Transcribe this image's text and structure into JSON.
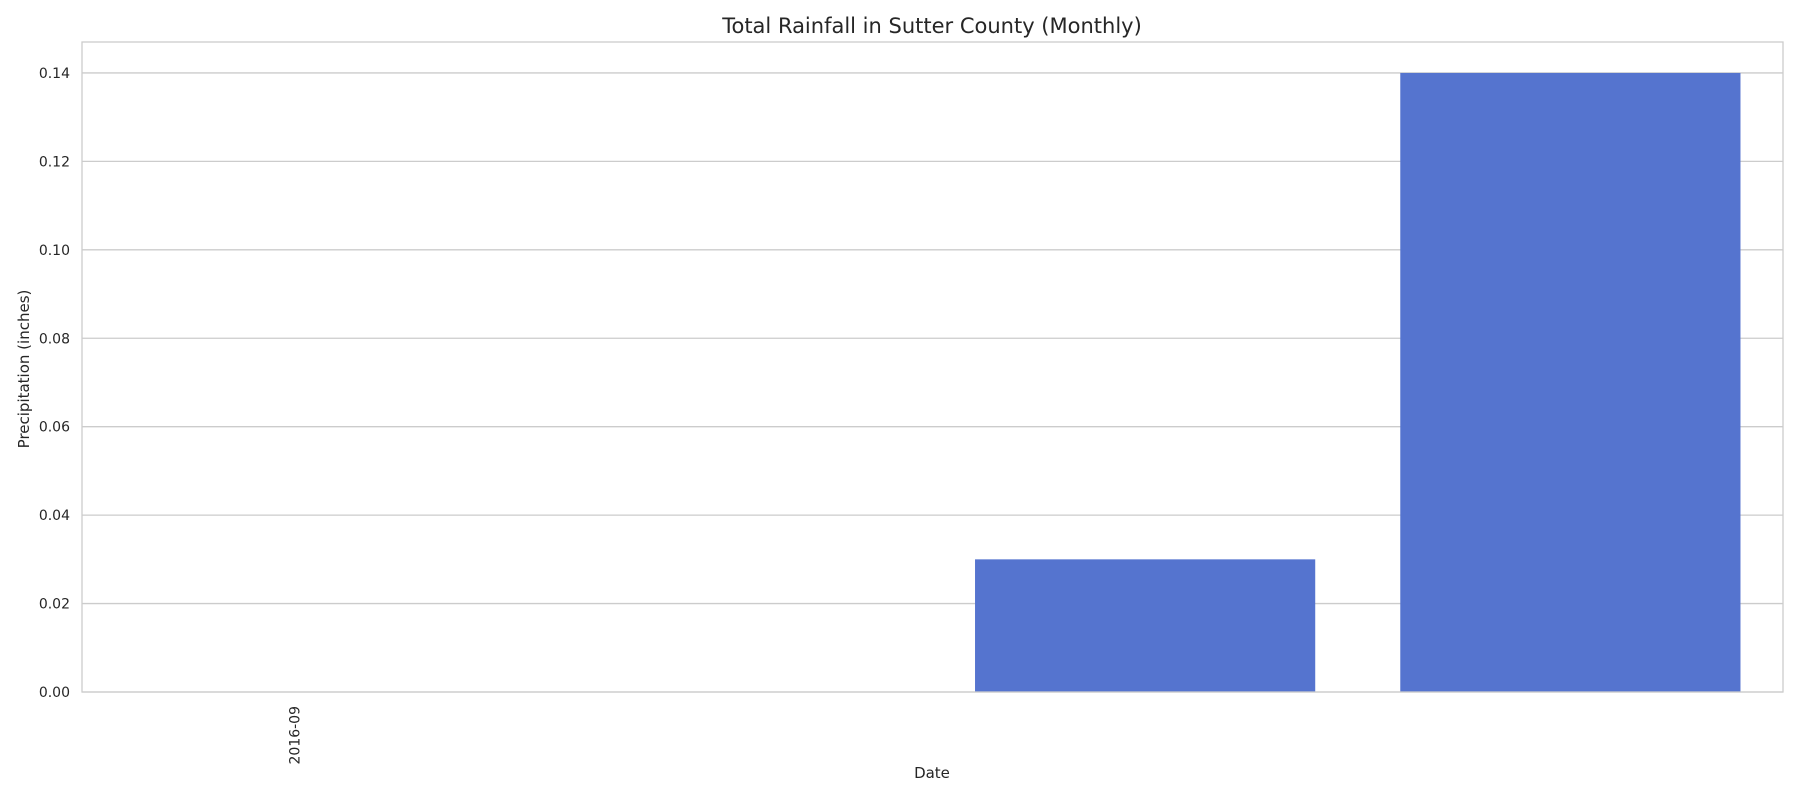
{
  "chart_data": {
    "type": "bar",
    "title": "Total Rainfall in Sutter County (Monthly)",
    "xlabel": "Date",
    "ylabel": "Precipitation (inches)",
    "categories": [
      "2016-09",
      "",
      "",
      ""
    ],
    "values": [
      0.0,
      0.0,
      0.03,
      0.14
    ],
    "ylim": [
      0,
      0.147
    ],
    "yticks": [
      "0.00",
      "0.02",
      "0.04",
      "0.06",
      "0.08",
      "0.10",
      "0.12",
      "0.14"
    ],
    "grid": true,
    "bar_color": "#5574cf",
    "grid_color": "#cccccc",
    "spine_color": "#cccccc"
  }
}
